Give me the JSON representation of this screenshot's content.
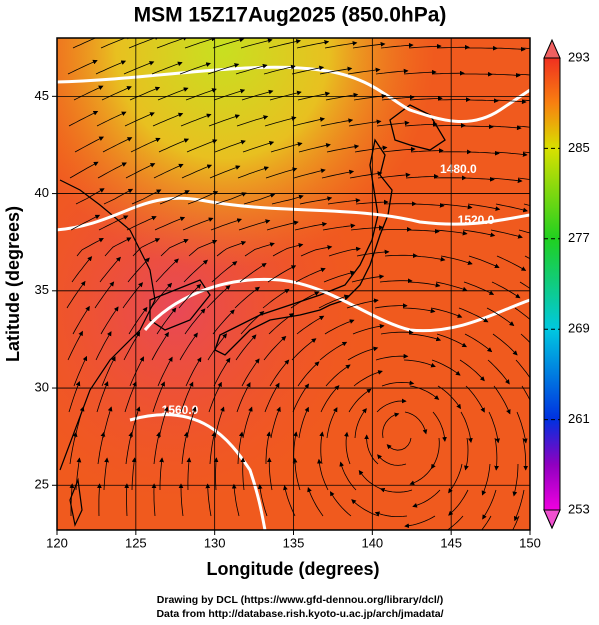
{
  "chart_data": {
    "type": "map",
    "title": "MSM 15Z17Aug2025 (850.0hPa)",
    "xlabel": "Longitude (degrees)",
    "ylabel": "Latitude  (degrees)",
    "xlim": [
      120,
      150
    ],
    "ylim": [
      22.7,
      48.0
    ],
    "xticks": [
      120,
      125,
      130,
      135,
      140,
      145,
      150
    ],
    "yticks": [
      25,
      30,
      35,
      40,
      45
    ],
    "grid": true,
    "colorbar": {
      "lim": [
        253,
        293
      ],
      "ticks": [
        253,
        261,
        269,
        277,
        285,
        293
      ]
    },
    "contours": [
      {
        "value": 1480,
        "label": "1480.0"
      },
      {
        "value": 1520,
        "label": "1520.0"
      },
      {
        "value": 1560,
        "label": "1560.0"
      }
    ]
  },
  "footer": [
    "Drawing by DCL (https://www.gfd-dennou.org/library/dcl/)",
    "Data from http://database.rish.kyoto-u.ac.jp/arch/jmadata/"
  ]
}
